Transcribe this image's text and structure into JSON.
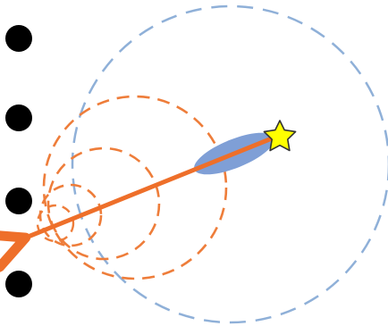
{
  "diagram": {
    "colors": {
      "background": "#ffffff",
      "dot": "#000000",
      "large_circle": "#8fb0d8",
      "orange_circles": "#ee7d3a",
      "arrow": "#ee6f2a",
      "ellipse": "#7f9fd6",
      "star_fill": "#ffff00",
      "star_stroke": "#333333"
    },
    "markers": {
      "dot_count": 4,
      "star": "star-icon"
    },
    "circles": {
      "large_count": 1,
      "orange_count": 4,
      "style": "dashed"
    }
  }
}
